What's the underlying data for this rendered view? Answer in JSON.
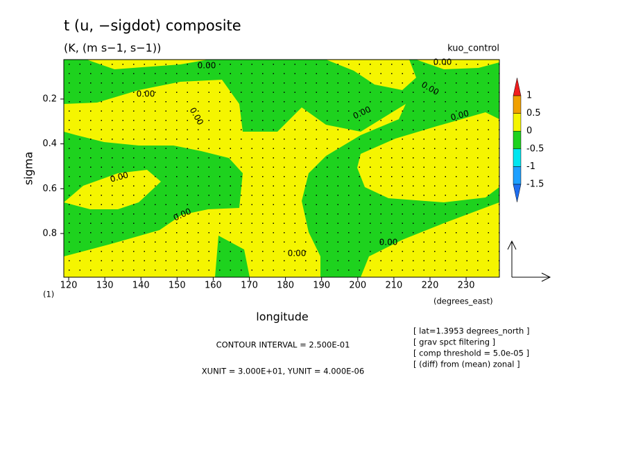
{
  "title": "t (u, −sigdot) composite",
  "subtitle": "(K, (m s−1, s−1))",
  "run_name": "kuo_control",
  "chart_data": {
    "type": "contour",
    "x_label": "longitude",
    "x_units": "(degrees_east)",
    "y_label": "sigma",
    "y_units": "(1)",
    "xlim": [
      118.65,
      239.2
    ],
    "xticks": [
      120,
      130,
      140,
      150,
      160,
      170,
      180,
      190,
      200,
      210,
      220,
      230
    ],
    "ylim": [
      0.995,
      0.024
    ],
    "yticks": [
      0.2,
      0.4,
      0.6,
      0.8
    ],
    "colorbar": {
      "levels": [
        -1.5,
        -1,
        -0.5,
        0,
        0.5,
        1
      ],
      "colors": [
        "#1e6ef0",
        "#1ea0ff",
        "#00e6f0",
        "#1ed21e",
        "#f5f500",
        "#f0a000",
        "#f01e1e"
      ]
    },
    "contour_labels": [
      "0.00",
      "0.00",
      "0.00",
      "0.00",
      "0.00",
      "0.00",
      "0.00",
      "0.00",
      "0.00",
      "0.00",
      "0.00"
    ]
  },
  "contour_interval": "CONTOUR INTERVAL = 2.500E-01",
  "vector_units": "XUNIT = 3.000E+01, YUNIT = 4.000E-06",
  "notes": [
    "[ lat=1.3953 degrees_north ]",
    "[ grav spct filtering ]",
    "[ comp threshold = 5.0e-05 ]",
    "[ (diff) from (mean) zonal ]"
  ]
}
